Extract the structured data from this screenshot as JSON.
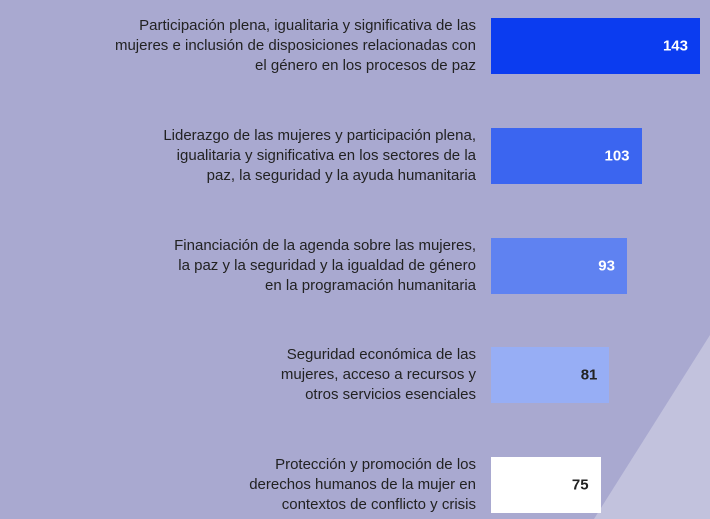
{
  "chart_data": {
    "type": "barh",
    "categories": [
      "Participación plena, igualitaria y significativa de las\nmujeres e inclusión de disposiciones relacionadas con\nel género en los procesos de paz",
      "Liderazgo de las mujeres y participación plena,\nigualitaria y significativa en los sectores de la\npaz, la seguridad y la ayuda humanitaria",
      "Financiación de la agenda sobre las mujeres,\nla paz y la seguridad y la igualdad de género\nen la programación humanitaria",
      "Seguridad económica de las\nmujeres, acceso a recursos y\notros servicios esenciales",
      "Protección y promoción de los\nderechos humanos de la mujer en\ncontextos de conflicto y crisis"
    ],
    "values": [
      143,
      103,
      93,
      81,
      75
    ],
    "colors": [
      "#0b3cf0",
      "#3b65f0",
      "#5f82f1",
      "#97aef5",
      "#ffffff"
    ]
  }
}
